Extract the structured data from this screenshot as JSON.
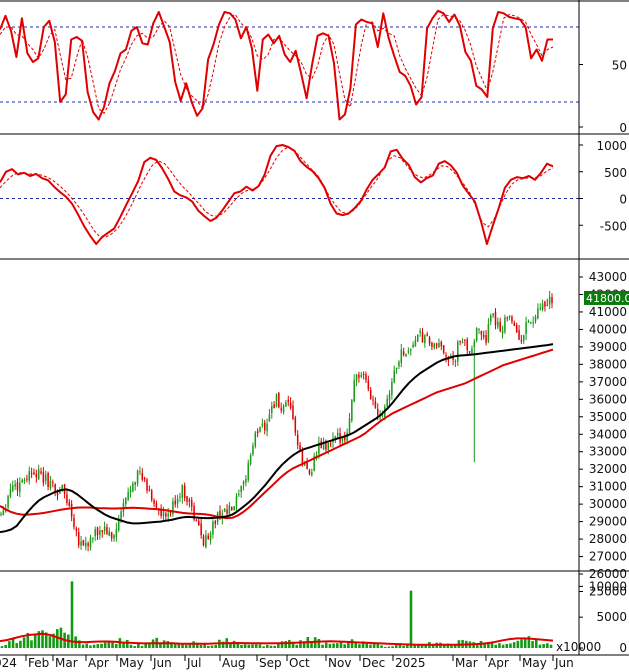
{
  "chart_data": [
    {
      "panel": "stochastic oscillator",
      "type": "line",
      "ylim": [
        0,
        100
      ],
      "y_ticks": [
        "50",
        "0"
      ],
      "reference_lines": [
        80,
        20
      ],
      "series": [
        {
          "color": "#e00000",
          "style": "solid",
          "values": [
            78,
            89,
            77,
            56,
            87,
            59,
            52,
            55,
            80,
            85,
            68,
            20,
            26,
            70,
            72,
            69,
            28,
            12,
            6,
            16,
            35,
            45,
            59,
            62,
            77,
            80,
            67,
            66,
            83,
            92,
            80,
            68,
            36,
            21,
            35,
            20,
            9,
            15,
            54,
            66,
            82,
            92,
            91,
            86,
            71,
            80,
            63,
            29,
            70,
            74,
            67,
            73,
            58,
            52,
            61,
            43,
            23,
            50,
            73,
            75,
            73,
            51,
            6,
            10,
            31,
            82,
            86,
            84,
            83,
            64,
            91,
            71,
            57,
            44,
            41,
            33,
            18,
            24,
            79,
            87,
            93,
            91,
            84,
            90,
            81,
            60,
            53,
            33,
            30,
            24,
            79,
            92,
            91,
            88,
            87,
            86,
            80,
            55,
            62,
            53,
            70,
            70
          ]
        },
        {
          "color": "#e00000",
          "style": "dashed",
          "values": [
            74,
            80,
            80,
            74,
            73,
            67,
            62,
            55,
            62,
            73,
            78,
            58,
            38,
            39,
            56,
            70,
            56,
            36,
            15,
            11,
            19,
            32,
            46,
            55,
            66,
            73,
            75,
            71,
            72,
            80,
            85,
            80,
            61,
            42,
            31,
            25,
            21,
            15,
            26,
            45,
            67,
            80,
            88,
            90,
            83,
            79,
            71,
            57,
            54,
            58,
            70,
            71,
            66,
            61,
            57,
            52,
            42,
            39,
            49,
            66,
            74,
            66,
            43,
            22,
            16,
            41,
            66,
            84,
            84,
            77,
            79,
            75,
            73,
            57,
            47,
            39,
            31,
            25,
            40,
            63,
            86,
            90,
            89,
            88,
            85,
            77,
            65,
            49,
            39,
            29,
            44,
            65,
            87,
            90,
            89,
            87,
            84,
            74,
            66,
            57,
            62,
            64
          ]
        }
      ]
    },
    {
      "panel": "momentum oscillator",
      "type": "line",
      "ylim": [
        -1000,
        1000
      ],
      "y_ticks": [
        "1000",
        "500",
        "0",
        "-500"
      ],
      "reference_lines": [
        0
      ],
      "series": [
        {
          "color": "#e00000",
          "style": "solid",
          "values": [
            300,
            500,
            550,
            450,
            480,
            420,
            460,
            380,
            340,
            220,
            120,
            30,
            -100,
            -300,
            -520,
            -700,
            -850,
            -720,
            -640,
            -560,
            -350,
            -120,
            100,
            330,
            680,
            760,
            720,
            560,
            360,
            130,
            60,
            20,
            -60,
            -230,
            -330,
            -420,
            -360,
            -220,
            -60,
            100,
            130,
            220,
            150,
            230,
            440,
            800,
            980,
            1000,
            960,
            890,
            700,
            590,
            510,
            380,
            200,
            -100,
            -280,
            -310,
            -280,
            -180,
            -50,
            170,
            350,
            460,
            580,
            880,
            910,
            740,
            630,
            400,
            300,
            380,
            430,
            650,
            700,
            620,
            480,
            240,
            90,
            -60,
            -420,
            -850,
            -500,
            -170,
            200,
            350,
            400,
            380,
            420,
            350,
            480,
            650,
            600
          ]
        },
        {
          "color": "#e00000",
          "style": "dashed",
          "values": [
            200,
            320,
            420,
            480,
            480,
            460,
            450,
            440,
            400,
            340,
            250,
            150,
            30,
            -100,
            -250,
            -420,
            -600,
            -720,
            -720,
            -660,
            -560,
            -400,
            -200,
            20,
            260,
            460,
            640,
            700,
            650,
            520,
            360,
            230,
            120,
            0,
            -120,
            -250,
            -320,
            -330,
            -270,
            -150,
            -20,
            90,
            150,
            180,
            230,
            380,
            560,
            760,
            900,
            960,
            900,
            780,
            660,
            540,
            430,
            250,
            40,
            -120,
            -250,
            -280,
            -230,
            -120,
            40,
            200,
            340,
            530,
            720,
            800,
            760,
            640,
            500,
            420,
            380,
            440,
            520,
            610,
            600,
            510,
            380,
            240,
            80,
            -180,
            -450,
            -530,
            -380,
            -130,
            100,
            270,
            350,
            370,
            390,
            390,
            430,
            520,
            570
          ]
        }
      ]
    },
    {
      "panel": "price",
      "type": "bar",
      "ylim": [
        25000,
        43000
      ],
      "y_ticks": [
        "43000",
        "42000",
        "41000",
        "40000",
        "39000",
        "38000",
        "37000",
        "36000",
        "35000",
        "34000",
        "33000",
        "32000",
        "31000",
        "30000",
        "29000",
        "28000",
        "27000",
        "26000",
        "25000"
      ],
      "last_price_label": "41800.00",
      "price_path": [
        29500,
        30200,
        31200,
        31000,
        31500,
        31700,
        32000,
        31600,
        31400,
        31200,
        30600,
        31000,
        30200,
        29300,
        28000,
        27700,
        27800,
        28200,
        28500,
        28600,
        27900,
        28600,
        29700,
        30500,
        31500,
        31800,
        31200,
        30600,
        30000,
        29300,
        29200,
        29700,
        30500,
        30800,
        30300,
        29300,
        28500,
        27800,
        28500,
        29100,
        29600,
        29500,
        29700,
        30300,
        31000,
        32500,
        33700,
        34600,
        34500,
        35500,
        36000,
        35300,
        35600,
        35000,
        33000,
        32200,
        31800,
        32700,
        33400,
        33200,
        33500,
        33700,
        34000,
        34000,
        37200,
        37400,
        37000,
        36300,
        35500,
        35200,
        36000,
        37100,
        38200,
        38800,
        38700,
        39400,
        39600,
        39400,
        39200,
        38800,
        39100,
        38500,
        37900,
        39100,
        39300,
        38800,
        39600,
        40000,
        39500,
        40600,
        40500,
        40000,
        41100,
        40400,
        39200,
        40000,
        40500,
        40600,
        41200,
        41200,
        41800
      ],
      "drops": [
        {
          "index": 86,
          "low": 32400
        }
      ],
      "series": [
        {
          "name": "",
          "color": "#e00000",
          "values": [
            29900,
            29700,
            29550,
            29450,
            29400,
            29400,
            29430,
            29460,
            29500,
            29560,
            29620,
            29680,
            29730,
            29770,
            29800,
            29810,
            29810,
            29790,
            29770,
            29760,
            29750,
            29750,
            29760,
            29780,
            29790,
            29780,
            29760,
            29740,
            29720,
            29690,
            29650,
            29600,
            29550,
            29500,
            29470,
            29450,
            29440,
            29420,
            29380,
            29300,
            29240,
            29200,
            29220,
            29350,
            29550,
            29800,
            30100,
            30400,
            30700,
            31000,
            31300,
            31600,
            31850,
            32050,
            32200,
            32350,
            32500,
            32650,
            32800,
            32950,
            33100,
            33250,
            33400,
            33550,
            33700,
            33850,
            34050,
            34300,
            34550,
            34800,
            35000,
            35200,
            35350,
            35500,
            35650,
            35800,
            35950,
            36100,
            36250,
            36400,
            36500,
            36600,
            36700,
            36800,
            36900,
            37050,
            37200,
            37350,
            37500,
            37650,
            37800,
            37950,
            38050,
            38150,
            38250,
            38350,
            38450,
            38550,
            38650,
            38750,
            38850
          ]
        },
        {
          "name": "",
          "color": "#000000",
          "values": [
            28400,
            28450,
            28550,
            28750,
            29150,
            29550,
            29900,
            30200,
            30400,
            30550,
            30700,
            30800,
            30850,
            30750,
            30550,
            30300,
            30050,
            29800,
            29600,
            29400,
            29250,
            29150,
            29050,
            28950,
            28900,
            28900,
            28920,
            28950,
            28980,
            29000,
            29050,
            29100,
            29180,
            29240,
            29270,
            29250,
            29220,
            29200,
            29200,
            29220,
            29250,
            29300,
            29400,
            29600,
            29850,
            30100,
            30400,
            30750,
            31100,
            31500,
            31900,
            32250,
            32550,
            32800,
            33000,
            33150,
            33250,
            33350,
            33450,
            33550,
            33650,
            33750,
            33850,
            33950,
            34100,
            34300,
            34500,
            34700,
            34900,
            35150,
            35450,
            35800,
            36200,
            36600,
            36950,
            37250,
            37500,
            37700,
            37900,
            38100,
            38250,
            38350,
            38450,
            38500,
            38520,
            38550,
            38580,
            38620,
            38660,
            38700,
            38740,
            38780,
            38820,
            38860,
            38900,
            38940,
            38980,
            39020,
            39060,
            39100,
            39160
          ]
        }
      ]
    },
    {
      "panel": "volume",
      "type": "bar",
      "ylim": [
        0,
        12000
      ],
      "y_ticks": [
        "10000",
        "5000",
        "0"
      ],
      "unit_label": "x10000",
      "spikes": [
        {
          "index": 19,
          "value": 10800
        },
        {
          "index": 111,
          "value": 9300
        }
      ],
      "volume_base": [
        400,
        800,
        1200,
        1500,
        1800,
        2000,
        2200,
        2300,
        2400,
        2200,
        1900,
        1500,
        1000,
        700,
        500,
        400,
        600,
        900,
        1100,
        1000,
        700,
        500,
        600,
        900,
        1100,
        1000,
        800,
        600,
        500,
        600,
        700,
        600,
        500,
        600,
        900,
        1000,
        900,
        700,
        600,
        500,
        400,
        400,
        500,
        600,
        700,
        800,
        900,
        1000,
        1200,
        1100,
        900,
        700,
        600,
        600,
        800,
        1000,
        1000,
        900,
        700,
        500,
        300,
        300,
        400,
        500,
        400,
        400,
        500,
        600,
        600,
        500,
        500,
        700,
        900,
        1000,
        900,
        700,
        600,
        600,
        500,
        600,
        1200,
        1900,
        1500,
        1100,
        900,
        700,
        700
      ],
      "series": [
        {
          "name": "",
          "color": "#e00000",
          "values": [
            1100,
            1300,
            1600,
            1900,
            2100,
            2200,
            2300,
            2100,
            1700,
            1300,
            1050,
            950,
            950,
            1000,
            1050,
            1050,
            1000,
            900,
            850,
            800,
            750,
            760,
            780,
            780,
            760,
            720,
            700,
            680,
            680,
            700,
            740,
            780,
            800,
            810,
            800,
            780,
            760,
            750,
            760,
            780,
            800,
            850,
            900,
            950,
            1000,
            1050,
            1080,
            1050,
            1000,
            950,
            900,
            850,
            800,
            750,
            700,
            650,
            600,
            560,
            540,
            530,
            520,
            520,
            520,
            530,
            540,
            560,
            600,
            680,
            800,
            1000,
            1250,
            1450,
            1550,
            1550,
            1500,
            1400,
            1300,
            1200
          ]
        }
      ]
    },
    {
      "panel": "x-axis",
      "type": "table",
      "x_tick_labels": [
        "024",
        "Feb",
        "Mar",
        "Apr",
        "May",
        "Jun",
        "Jul",
        "Aug",
        "Sep",
        "Oct",
        "Nov",
        "Dec",
        "2025",
        "Mar",
        "Apr",
        "May",
        "Jun"
      ]
    }
  ]
}
